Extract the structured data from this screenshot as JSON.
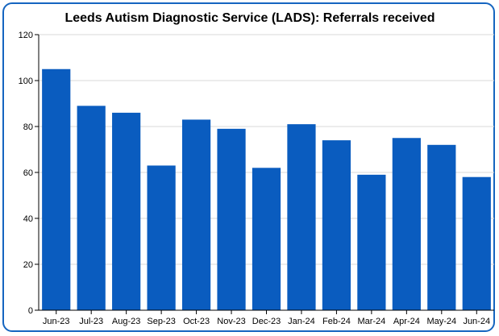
{
  "chart_data": {
    "type": "bar",
    "title": "Leeds Autism Diagnostic Service (LADS): Referrals received",
    "xlabel": "",
    "ylabel": "",
    "categories": [
      "Jun-23",
      "Jul-23",
      "Aug-23",
      "Sep-23",
      "Oct-23",
      "Nov-23",
      "Dec-23",
      "Jan-24",
      "Feb-24",
      "Mar-24",
      "Apr-24",
      "May-24",
      "Jun-24"
    ],
    "values": [
      105,
      89,
      86,
      63,
      83,
      79,
      62,
      81,
      74,
      59,
      75,
      72,
      58
    ],
    "ylim": [
      0,
      120
    ],
    "yticks": [
      0,
      20,
      40,
      60,
      80,
      100,
      120
    ],
    "grid": true,
    "legend": "none",
    "colors": {
      "bar": "#0a5cbf",
      "frame": "#1565c0",
      "grid": "#d9d9d9",
      "axis": "#000000"
    }
  }
}
